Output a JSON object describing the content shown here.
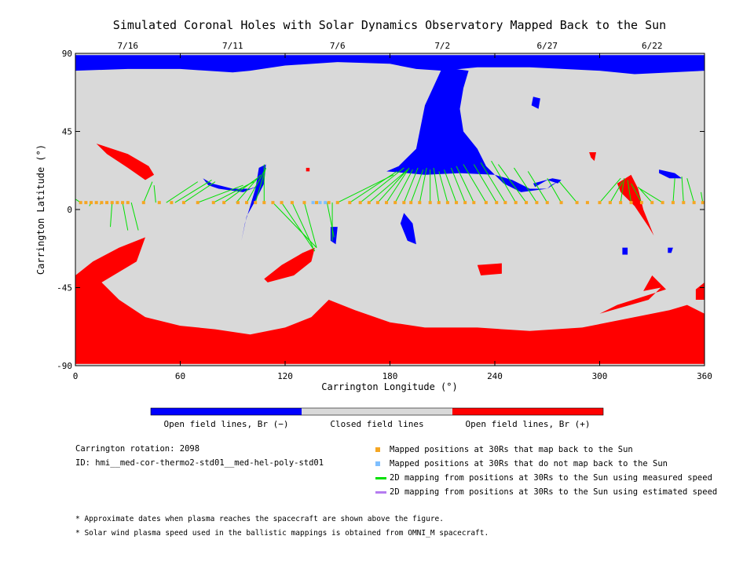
{
  "chart_data": {
    "type": "map",
    "title": "Simulated Coronal Holes with Solar Dynamics Observatory Mapped Back to the Sun",
    "xlabel": "Carrington Longitude (°)",
    "ylabel": "Carrington Latitude (°)",
    "xlim": [
      0,
      360
    ],
    "ylim": [
      -90,
      90
    ],
    "x_ticks": [
      "0",
      "60",
      "120",
      "180",
      "240",
      "300",
      "360"
    ],
    "y_ticks": [
      "90",
      "45",
      "0",
      "-45",
      "-90"
    ],
    "date_ticks": [
      {
        "label": "7/16",
        "lon": 30
      },
      {
        "label": "7/11",
        "lon": 90
      },
      {
        "label": "7/6",
        "lon": 150
      },
      {
        "label": "7/2",
        "lon": 210
      },
      {
        "label": "6/27",
        "lon": 270
      },
      {
        "label": "6/22",
        "lon": 330
      }
    ],
    "colors": {
      "open_negative": "#0000ff",
      "closed": "#d9d9d9",
      "open_positive": "#ff0000",
      "mapped": "#f5a623",
      "unmapped": "#7fbfff",
      "measured": "#00e000",
      "estimated": "#b57cf0"
    },
    "regions": {
      "open_negative": [
        [
          [
            0,
            89
          ],
          [
            360,
            89
          ],
          [
            360,
            80
          ],
          [
            320,
            78
          ],
          [
            300,
            80
          ],
          [
            260,
            82
          ],
          [
            230,
            82
          ],
          [
            210,
            80
          ],
          [
            195,
            81
          ],
          [
            180,
            84
          ],
          [
            150,
            85
          ],
          [
            120,
            83
          ],
          [
            100,
            80
          ],
          [
            90,
            79
          ],
          [
            60,
            81
          ],
          [
            30,
            81
          ],
          [
            0,
            80
          ]
        ],
        [
          [
            210,
            82
          ],
          [
            200,
            60
          ],
          [
            195,
            35
          ],
          [
            185,
            25
          ],
          [
            178,
            22
          ],
          [
            190,
            21
          ],
          [
            200,
            20
          ],
          [
            220,
            21
          ],
          [
            240,
            20
          ],
          [
            250,
            17
          ],
          [
            260,
            12
          ],
          [
            270,
            12
          ],
          [
            272,
            14
          ],
          [
            276,
            16
          ],
          [
            270,
            12
          ],
          [
            255,
            10
          ],
          [
            245,
            15
          ],
          [
            235,
            25
          ],
          [
            230,
            35
          ],
          [
            222,
            45
          ],
          [
            220,
            58
          ],
          [
            222,
            70
          ],
          [
            225,
            80
          ]
        ],
        [
          [
            263,
            13
          ],
          [
            270,
            17
          ],
          [
            276,
            15
          ],
          [
            278,
            17
          ],
          [
            273,
            18
          ],
          [
            262,
            15
          ]
        ],
        [
          [
            105,
            24
          ],
          [
            109,
            26
          ],
          [
            108,
            15
          ],
          [
            104,
            7
          ],
          [
            98,
            -4
          ],
          [
            95,
            -18
          ],
          [
            97,
            -8
          ],
          [
            100,
            2
          ],
          [
            103,
            12
          ]
        ],
        [
          [
            188,
            -2
          ],
          [
            193,
            -8
          ],
          [
            195,
            -20
          ],
          [
            190,
            -18
          ],
          [
            186,
            -8
          ]
        ],
        [
          [
            334,
            23
          ],
          [
            343,
            21
          ],
          [
            347,
            18
          ],
          [
            340,
            18
          ],
          [
            334,
            21
          ]
        ],
        [
          [
            73,
            18
          ],
          [
            78,
            15
          ],
          [
            90,
            12
          ],
          [
            100,
            12
          ],
          [
            106,
            14
          ],
          [
            96,
            10
          ],
          [
            82,
            12
          ],
          [
            76,
            14
          ]
        ],
        [
          [
            262,
            65
          ],
          [
            261,
            60
          ],
          [
            265,
            58
          ],
          [
            266,
            64
          ]
        ],
        [
          [
            146,
            -10
          ],
          [
            150,
            -10
          ],
          [
            149,
            -20
          ],
          [
            146,
            -18
          ]
        ],
        [
          [
            313,
            -22
          ],
          [
            316,
            -22
          ],
          [
            316,
            -26
          ],
          [
            313,
            -26
          ]
        ],
        [
          [
            339,
            -22
          ],
          [
            342,
            -22
          ],
          [
            341,
            -25
          ],
          [
            339,
            -25
          ]
        ]
      ],
      "open_positive": [
        [
          [
            0,
            -89
          ],
          [
            360,
            -89
          ],
          [
            360,
            -60
          ],
          [
            350,
            -55
          ],
          [
            340,
            -58
          ],
          [
            320,
            -62
          ],
          [
            290,
            -68
          ],
          [
            260,
            -70
          ],
          [
            230,
            -68
          ],
          [
            200,
            -68
          ],
          [
            180,
            -65
          ],
          [
            160,
            -58
          ],
          [
            145,
            -52
          ],
          [
            135,
            -62
          ],
          [
            120,
            -68
          ],
          [
            100,
            -72
          ],
          [
            80,
            -69
          ],
          [
            60,
            -67
          ],
          [
            40,
            -62
          ],
          [
            25,
            -52
          ],
          [
            15,
            -42
          ],
          [
            35,
            -30
          ],
          [
            40,
            -16
          ],
          [
            25,
            -22
          ],
          [
            10,
            -30
          ],
          [
            0,
            -38
          ]
        ],
        [
          [
            330,
            -38
          ],
          [
            325,
            -47
          ],
          [
            335,
            -45
          ],
          [
            328,
            -52
          ],
          [
            300,
            -60
          ],
          [
            310,
            -55
          ],
          [
            338,
            -46
          ]
        ],
        [
          [
            355,
            -46
          ],
          [
            360,
            -42
          ],
          [
            360,
            -52
          ],
          [
            355,
            -52
          ]
        ],
        [
          [
            110,
            -42
          ],
          [
            125,
            -38
          ],
          [
            135,
            -30
          ],
          [
            137,
            -22
          ],
          [
            130,
            -25
          ],
          [
            118,
            -32
          ],
          [
            108,
            -40
          ]
        ],
        [
          [
            12,
            38
          ],
          [
            30,
            32
          ],
          [
            42,
            25
          ],
          [
            45,
            20
          ],
          [
            40,
            17
          ],
          [
            30,
            24
          ],
          [
            18,
            32
          ]
        ],
        [
          [
            310,
            15
          ],
          [
            318,
            20
          ],
          [
            322,
            12
          ],
          [
            325,
            0
          ],
          [
            331,
            -15
          ],
          [
            328,
            -10
          ],
          [
            320,
            2
          ],
          [
            312,
            10
          ]
        ],
        [
          [
            230,
            -32
          ],
          [
            244,
            -31
          ],
          [
            244,
            -37
          ],
          [
            232,
            -38
          ]
        ],
        [
          [
            294,
            33
          ],
          [
            298,
            33
          ],
          [
            297,
            28
          ],
          [
            295,
            30
          ]
        ],
        [
          [
            132,
            24
          ],
          [
            134,
            24
          ],
          [
            134,
            22
          ],
          [
            132,
            22
          ]
        ]
      ]
    },
    "mapped_points_lon": [
      3,
      6,
      9,
      12,
      15,
      18,
      21,
      24,
      27,
      30,
      39,
      48,
      55,
      62,
      70,
      79,
      85,
      93,
      98,
      103,
      108,
      113,
      118,
      124,
      131,
      138,
      145,
      150,
      157,
      163,
      168,
      173,
      178,
      183,
      188,
      192,
      197,
      203,
      208,
      213,
      218,
      223,
      228,
      235,
      241,
      246,
      252,
      258,
      264,
      270,
      278,
      287,
      293,
      300,
      306,
      312,
      318,
      324,
      330,
      336,
      342,
      348,
      354,
      359
    ],
    "mapped_points_lat": 4,
    "unmapped_points_lon": [
      136,
      140,
      143
    ],
    "measured_links": [
      [
        3,
        4,
        0,
        6
      ],
      [
        9,
        4,
        8,
        2
      ],
      [
        15,
        4,
        14,
        3
      ],
      [
        21,
        4,
        20,
        -10
      ],
      [
        27,
        4,
        30,
        -12
      ],
      [
        32,
        4,
        36,
        -12
      ],
      [
        39,
        4,
        44,
        16
      ],
      [
        46,
        4,
        45,
        14
      ],
      [
        52,
        4,
        70,
        16
      ],
      [
        57,
        4,
        78,
        17
      ],
      [
        62,
        4,
        80,
        16
      ],
      [
        70,
        4,
        96,
        14
      ],
      [
        79,
        4,
        102,
        16
      ],
      [
        85,
        4,
        104,
        18
      ],
      [
        92,
        4,
        106,
        20
      ],
      [
        98,
        4,
        108,
        22
      ],
      [
        103,
        4,
        109,
        24
      ],
      [
        108,
        4,
        108,
        26
      ],
      [
        113,
        4,
        138,
        -22
      ],
      [
        118,
        4,
        137,
        -24
      ],
      [
        124,
        4,
        136,
        -22
      ],
      [
        131,
        4,
        138,
        -22
      ],
      [
        144,
        4,
        148,
        -16
      ],
      [
        147,
        4,
        147,
        -18
      ],
      [
        150,
        4,
        182,
        20
      ],
      [
        157,
        4,
        184,
        22
      ],
      [
        163,
        4,
        188,
        24
      ],
      [
        168,
        4,
        189,
        22
      ],
      [
        173,
        4,
        190,
        23
      ],
      [
        178,
        4,
        191,
        24
      ],
      [
        183,
        4,
        193,
        23
      ],
      [
        188,
        4,
        196,
        24
      ],
      [
        192,
        4,
        199,
        23
      ],
      [
        197,
        4,
        201,
        24
      ],
      [
        203,
        4,
        203,
        23
      ],
      [
        208,
        4,
        205,
        24
      ],
      [
        213,
        4,
        208,
        22
      ],
      [
        218,
        4,
        211,
        23
      ],
      [
        223,
        4,
        215,
        24
      ],
      [
        228,
        4,
        218,
        25
      ],
      [
        235,
        4,
        222,
        26
      ],
      [
        241,
        4,
        228,
        26
      ],
      [
        246,
        4,
        232,
        27
      ],
      [
        252,
        4,
        238,
        28
      ],
      [
        258,
        4,
        242,
        26
      ],
      [
        264,
        4,
        251,
        24
      ],
      [
        270,
        4,
        259,
        22
      ],
      [
        278,
        4,
        270,
        18
      ],
      [
        287,
        4,
        277,
        16
      ],
      [
        300,
        4,
        312,
        18
      ],
      [
        306,
        4,
        313,
        16
      ],
      [
        312,
        4,
        314,
        18
      ],
      [
        318,
        4,
        316,
        17
      ],
      [
        324,
        4,
        318,
        15
      ],
      [
        330,
        4,
        322,
        13
      ],
      [
        336,
        4,
        323,
        12
      ],
      [
        342,
        4,
        343,
        18
      ],
      [
        348,
        4,
        347,
        19
      ],
      [
        354,
        4,
        350,
        18
      ],
      [
        359,
        4,
        358,
        10
      ]
    ]
  },
  "colorbar": {
    "segments": [
      {
        "label": "Open field lines, Br (−)",
        "color": "#0000ff"
      },
      {
        "label": "Closed field lines",
        "color": "#d9d9d9"
      },
      {
        "label": "Open field lines, Br (+)",
        "color": "#ff0000"
      }
    ]
  },
  "info": {
    "rotation": "Carrington rotation: 2098",
    "id": "ID: hmi__med-cor-thermo2-std01__med-hel-poly-std01"
  },
  "legend": {
    "mapped": "Mapped positions at 30Rs that map back to the Sun",
    "unmapped": "Mapped positions at 30Rs that do not map back to the Sun",
    "measured": "2D mapping from positions at 30Rs to the Sun using measured speed",
    "estimated": "2D mapping from positions at 30Rs to the Sun using estimated speed"
  },
  "notes": {
    "dates": "* Approximate dates when plasma reaches the spacecraft are shown above the figure.",
    "speed": "* Solar wind plasma speed used in the ballistic mappings is obtained from OMNI_M spacecraft."
  }
}
